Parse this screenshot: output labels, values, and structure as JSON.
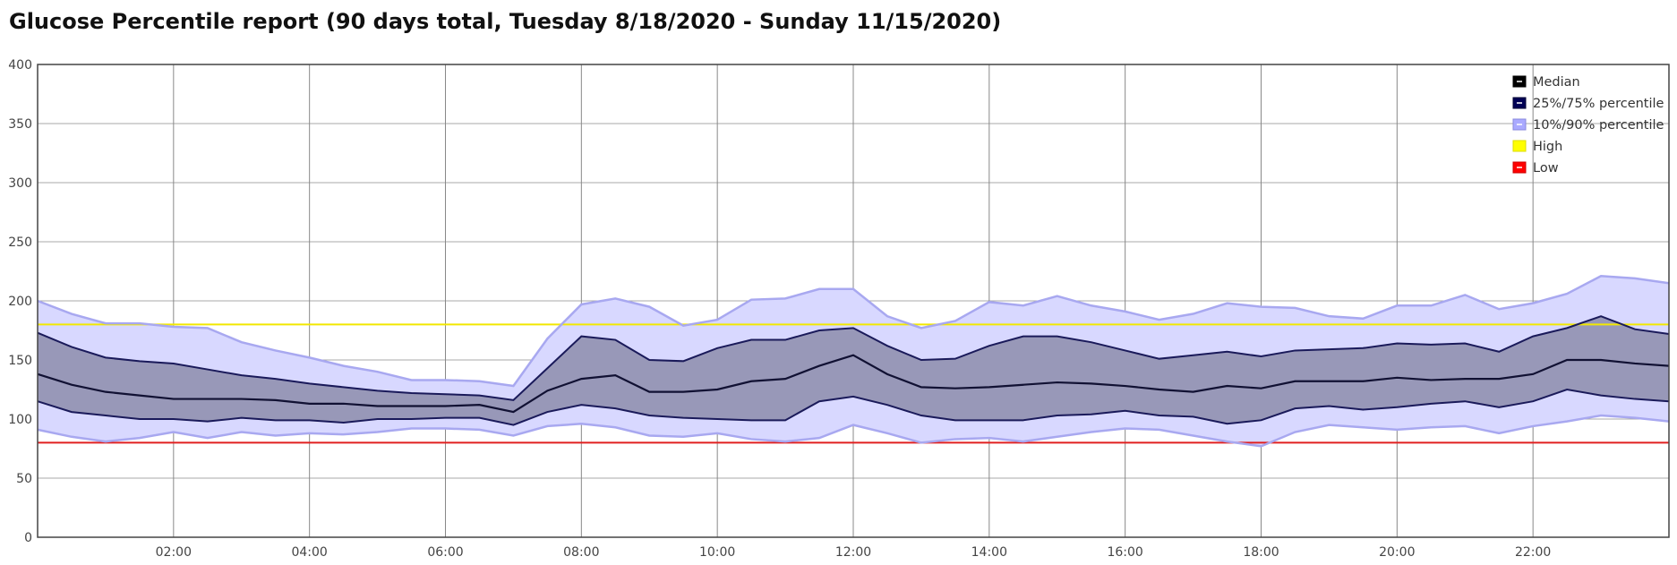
{
  "title": "Glucose Percentile report (90 days total, Tuesday 8/18/2020 - Sunday 11/15/2020)",
  "chart_data": {
    "type": "area",
    "x_unit": "hour of day",
    "xlim": [
      0,
      24
    ],
    "ylim": [
      0,
      400
    ],
    "y_ticks": [
      0,
      50,
      100,
      150,
      200,
      250,
      300,
      350,
      400
    ],
    "x_ticks": [
      {
        "value": 2,
        "label": "02:00"
      },
      {
        "value": 4,
        "label": "04:00"
      },
      {
        "value": 6,
        "label": "06:00"
      },
      {
        "value": 8,
        "label": "08:00"
      },
      {
        "value": 10,
        "label": "10:00"
      },
      {
        "value": 12,
        "label": "12:00"
      },
      {
        "value": 14,
        "label": "14:00"
      },
      {
        "value": 16,
        "label": "16:00"
      },
      {
        "value": 18,
        "label": "18:00"
      },
      {
        "value": 20,
        "label": "20:00"
      },
      {
        "value": 22,
        "label": "22:00"
      }
    ],
    "x": [
      0,
      0.5,
      1,
      1.5,
      2,
      2.5,
      3,
      3.5,
      4,
      4.5,
      5,
      5.5,
      6,
      6.5,
      7,
      7.5,
      8,
      8.5,
      9,
      9.5,
      10,
      10.5,
      11,
      11.5,
      12,
      12.5,
      13,
      13.5,
      14,
      14.5,
      15,
      15.5,
      16,
      16.5,
      17,
      17.5,
      18,
      18.5,
      19,
      19.5,
      20,
      20.5,
      21,
      21.5,
      22,
      22.5,
      23,
      23.5,
      24
    ],
    "series": [
      {
        "name": "Median",
        "color": "#000000",
        "values": [
          138,
          129,
          123,
          120,
          117,
          117,
          117,
          116,
          113,
          113,
          111,
          111,
          111,
          112,
          106,
          124,
          134,
          137,
          123,
          123,
          125,
          132,
          134,
          145,
          154,
          138,
          127,
          126,
          127,
          129,
          131,
          130,
          128,
          125,
          123,
          128,
          126,
          132,
          132,
          132,
          135,
          133,
          134,
          134,
          138,
          150,
          150,
          147,
          145
        ]
      },
      {
        "name": "25%/75% percentile",
        "color": "#000055",
        "lower": [
          115,
          106,
          103,
          100,
          100,
          98,
          101,
          99,
          99,
          97,
          100,
          100,
          101,
          101,
          95,
          106,
          112,
          109,
          103,
          101,
          100,
          99,
          99,
          115,
          119,
          112,
          103,
          99,
          99,
          99,
          103,
          104,
          107,
          103,
          102,
          96,
          99,
          109,
          111,
          108,
          110,
          113,
          115,
          110,
          115,
          125,
          120,
          117,
          115
        ],
        "upper": [
          173,
          161,
          152,
          149,
          147,
          142,
          137,
          134,
          130,
          127,
          124,
          122,
          121,
          120,
          116,
          143,
          170,
          167,
          150,
          149,
          160,
          167,
          167,
          175,
          177,
          162,
          150,
          151,
          162,
          170,
          170,
          165,
          158,
          151,
          154,
          157,
          153,
          158,
          159,
          160,
          164,
          163,
          164,
          157,
          170,
          177,
          187,
          176,
          172
        ]
      },
      {
        "name": "10%/90% percentile",
        "color": "#aaaaff",
        "lower": [
          91,
          85,
          81,
          84,
          89,
          84,
          89,
          86,
          88,
          87,
          89,
          92,
          92,
          91,
          86,
          94,
          96,
          93,
          86,
          85,
          88,
          83,
          81,
          84,
          95,
          88,
          80,
          83,
          84,
          81,
          85,
          89,
          92,
          91,
          86,
          81,
          77,
          89,
          95,
          93,
          91,
          93,
          94,
          88,
          94,
          98,
          103,
          101,
          98
        ],
        "upper": [
          200,
          189,
          181,
          181,
          178,
          177,
          165,
          158,
          152,
          145,
          140,
          133,
          133,
          132,
          128,
          168,
          197,
          202,
          195,
          179,
          184,
          201,
          202,
          210,
          210,
          187,
          177,
          183,
          199,
          196,
          204,
          196,
          191,
          184,
          189,
          198,
          195,
          194,
          187,
          185,
          196,
          196,
          205,
          193,
          198,
          206,
          221,
          219,
          215
        ]
      },
      {
        "name": "High",
        "color": "#ffff00",
        "value": 180
      },
      {
        "name": "Low",
        "color": "#ff0000",
        "value": 80
      }
    ],
    "legend_position": "top-right",
    "grid": true
  }
}
